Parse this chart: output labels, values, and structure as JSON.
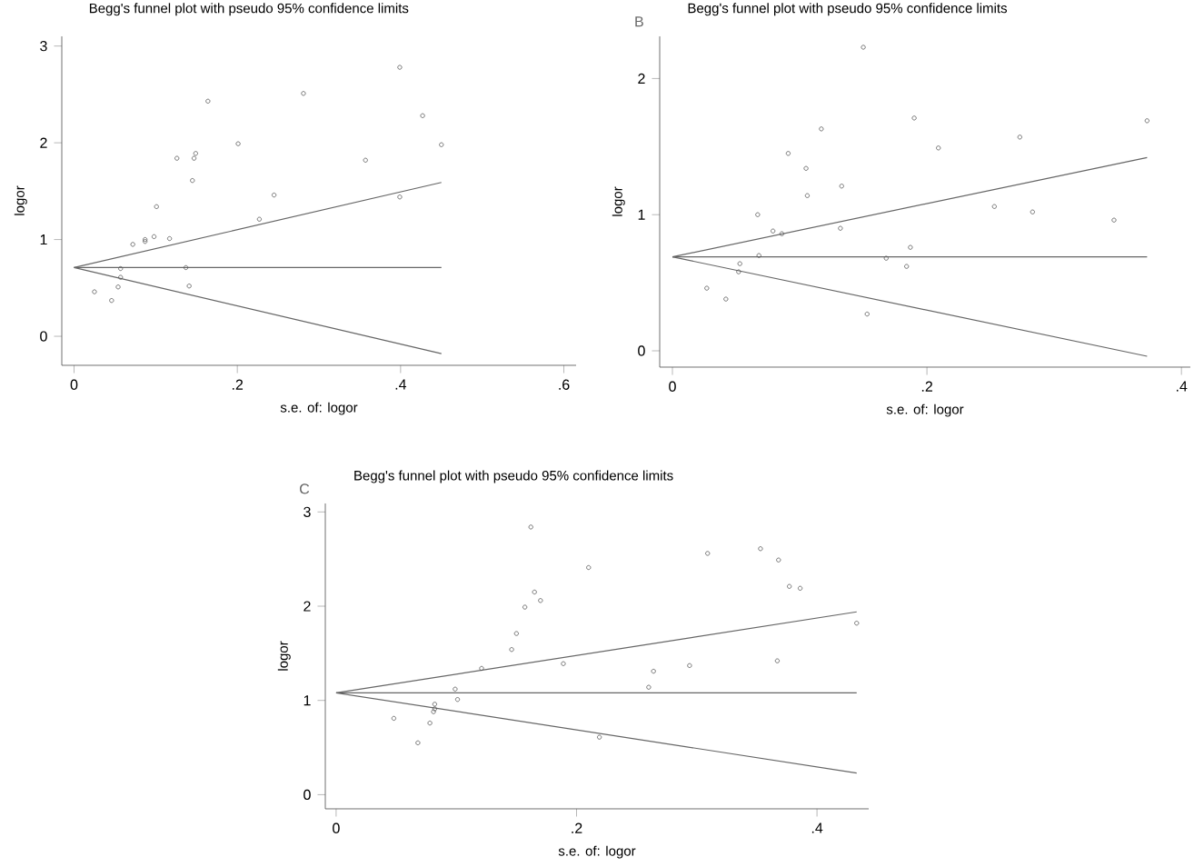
{
  "chart_data": [
    {
      "type": "scatter",
      "title": "Begg's funnel plot with pseudo 95% confidence limits",
      "xlabel": "s.e. of: logor",
      "ylabel": "logor",
      "xlim": [
        -0.015,
        0.615
      ],
      "ylim": [
        -0.3,
        3.1
      ],
      "xticks": [
        0,
        {
          "value": 0.2,
          "label": ".2"
        },
        {
          "value": 0.4,
          "label": ".4"
        },
        {
          "value": 0.6,
          "label": ".6"
        }
      ],
      "yticks": [
        0,
        1,
        2,
        3
      ],
      "grid": false,
      "series": [
        {
          "marker": "circle",
          "color": "#555555",
          "x": [
            0.025,
            0.046,
            0.054,
            0.057,
            0.057,
            0.072,
            0.087,
            0.087,
            0.098,
            0.101,
            0.117,
            0.126,
            0.137,
            0.141,
            0.145,
            0.147,
            0.149,
            0.164,
            0.201,
            0.227,
            0.245,
            0.281,
            0.357,
            0.399,
            0.399,
            0.427,
            0.45
          ],
          "values": [
            0.46,
            0.37,
            0.51,
            0.61,
            0.7,
            0.95,
            0.98,
            1.0,
            1.03,
            1.34,
            1.01,
            1.84,
            0.71,
            0.52,
            1.61,
            1.84,
            1.89,
            2.43,
            1.99,
            1.21,
            1.46,
            2.51,
            1.82,
            2.78,
            1.44,
            2.28,
            1.98
          ]
        },
        {
          "type": "line",
          "marker": "none",
          "color": "#666666",
          "x": [
            0,
            0.45
          ],
          "values": [
            0.71,
            1.59
          ]
        },
        {
          "type": "line",
          "marker": "none",
          "color": "#666666",
          "x": [
            0,
            0.45
          ],
          "values": [
            0.71,
            0.71
          ]
        },
        {
          "type": "line",
          "marker": "none",
          "color": "#666666",
          "x": [
            0,
            0.45
          ],
          "values": [
            0.71,
            -0.18
          ]
        }
      ]
    },
    {
      "type": "scatter",
      "title": "Begg's funnel plot with pseudo 95% confidence limits",
      "annotations": [
        "B"
      ],
      "xlabel": "s.e. of: logor",
      "ylabel": "logor",
      "xlim": [
        -0.01,
        0.407
      ],
      "ylim": [
        -0.12,
        2.31
      ],
      "xticks": [
        0,
        {
          "value": 0.2,
          "label": ".2"
        },
        {
          "value": 0.4,
          "label": ".4"
        }
      ],
      "yticks": [
        0,
        1,
        2
      ],
      "grid": false,
      "series": [
        {
          "marker": "circle",
          "color": "#555555",
          "x": [
            0.027,
            0.042,
            0.052,
            0.053,
            0.067,
            0.068,
            0.079,
            0.086,
            0.091,
            0.105,
            0.106,
            0.117,
            0.132,
            0.133,
            0.15,
            0.153,
            0.168,
            0.184,
            0.187,
            0.19,
            0.209,
            0.253,
            0.273,
            0.283,
            0.347,
            0.373
          ],
          "values": [
            0.46,
            0.38,
            0.58,
            0.64,
            1.0,
            0.7,
            0.88,
            0.86,
            1.45,
            1.34,
            1.14,
            1.63,
            0.9,
            1.21,
            2.23,
            0.27,
            0.68,
            0.62,
            0.76,
            1.71,
            1.49,
            1.06,
            1.57,
            1.02,
            0.96,
            1.69
          ]
        },
        {
          "type": "line",
          "marker": "none",
          "color": "#666666",
          "x": [
            0,
            0.373
          ],
          "values": [
            0.69,
            1.42
          ]
        },
        {
          "type": "line",
          "marker": "none",
          "color": "#666666",
          "x": [
            0,
            0.373
          ],
          "values": [
            0.69,
            0.69
          ]
        },
        {
          "type": "line",
          "marker": "none",
          "color": "#666666",
          "x": [
            0,
            0.373
          ],
          "values": [
            0.69,
            -0.04
          ]
        }
      ]
    },
    {
      "type": "scatter",
      "title": "Begg's funnel plot with pseudo 95% confidence limits",
      "annotations": [
        "C"
      ],
      "xlabel": "s.e. of: logor",
      "ylabel": "logor",
      "xlim": [
        -0.009,
        0.443
      ],
      "ylim": [
        -0.15,
        3.09
      ],
      "xticks": [
        0,
        {
          "value": 0.2,
          "label": ".2"
        },
        {
          "value": 0.4,
          "label": ".4"
        }
      ],
      "yticks": [
        0,
        1,
        2,
        3
      ],
      "grid": false,
      "series": [
        {
          "marker": "circle",
          "color": "#555555",
          "x": [
            0.048,
            0.068,
            0.078,
            0.081,
            0.082,
            0.082,
            0.099,
            0.101,
            0.121,
            0.146,
            0.15,
            0.157,
            0.162,
            0.165,
            0.17,
            0.189,
            0.21,
            0.219,
            0.26,
            0.264,
            0.294,
            0.309,
            0.353,
            0.367,
            0.368,
            0.377,
            0.386,
            0.433
          ],
          "values": [
            0.81,
            0.55,
            0.76,
            0.88,
            0.96,
            0.91,
            1.12,
            1.01,
            1.34,
            1.54,
            1.71,
            1.99,
            2.84,
            2.15,
            2.06,
            1.39,
            2.41,
            0.61,
            1.14,
            1.31,
            1.37,
            2.56,
            2.61,
            1.42,
            2.49,
            2.21,
            2.19,
            1.82
          ]
        },
        {
          "type": "line",
          "marker": "none",
          "color": "#666666",
          "x": [
            0,
            0.433
          ],
          "values": [
            1.08,
            1.94
          ]
        },
        {
          "type": "line",
          "marker": "none",
          "color": "#666666",
          "x": [
            0,
            0.433
          ],
          "values": [
            1.08,
            1.08
          ]
        },
        {
          "type": "line",
          "marker": "none",
          "color": "#666666",
          "x": [
            0,
            0.433
          ],
          "values": [
            1.08,
            0.23
          ]
        }
      ]
    }
  ]
}
